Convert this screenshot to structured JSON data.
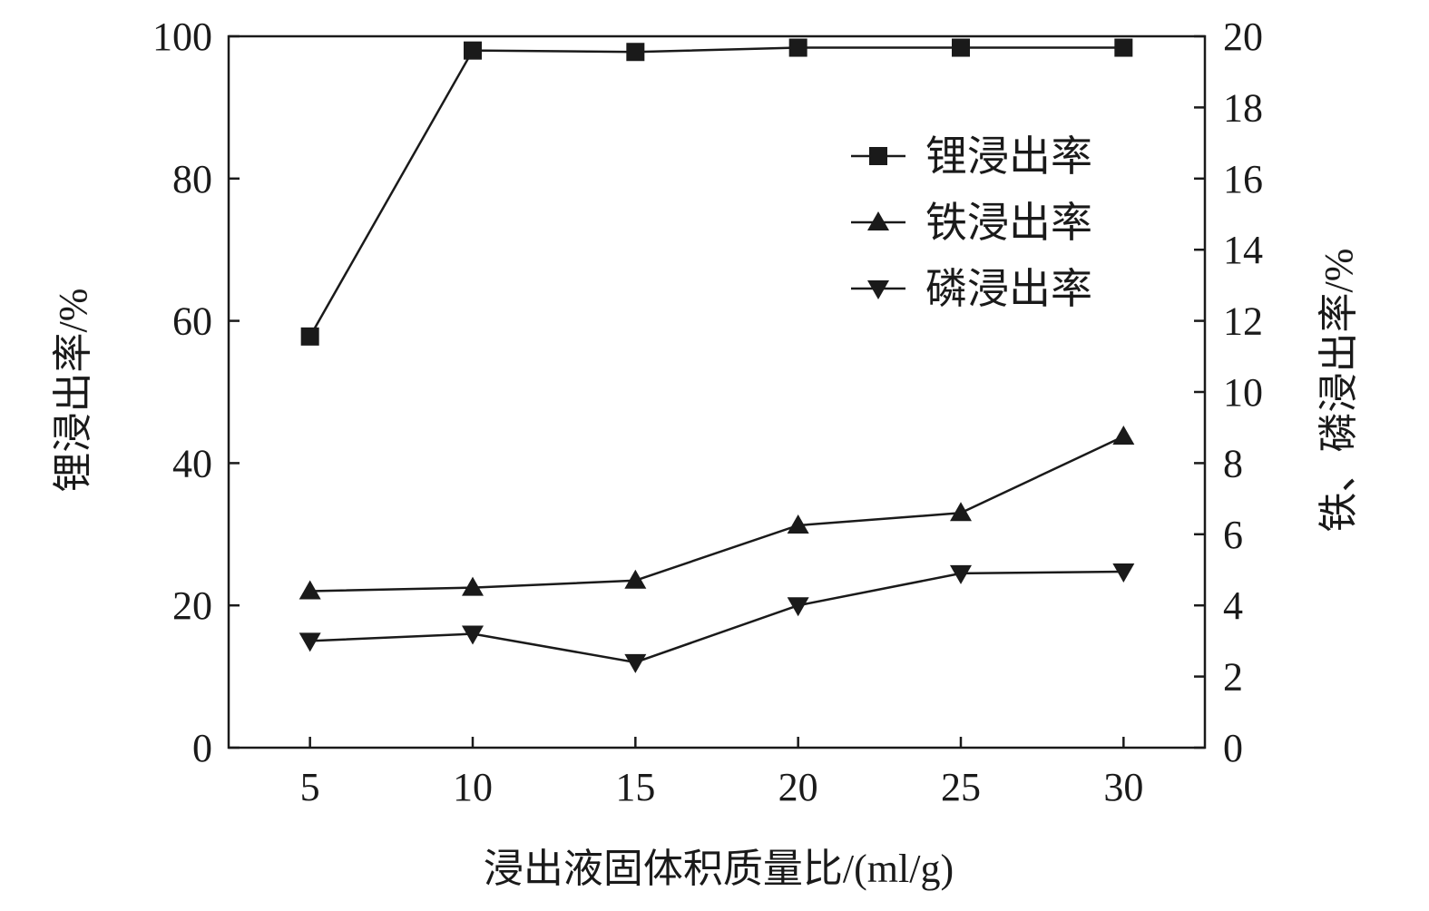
{
  "chart_data": {
    "type": "line",
    "xlabel": "浸出液固体积质量比/(ml/g)",
    "ylabel_left": "锂浸出率/%",
    "ylabel_right": "铁、磷浸出率/%",
    "x": [
      5,
      10,
      15,
      20,
      25,
      30
    ],
    "xlim": [
      2.5,
      32.5
    ],
    "ylim_left": [
      0,
      100
    ],
    "ylim_right": [
      0,
      20
    ],
    "xticks": [
      5,
      10,
      15,
      20,
      25,
      30
    ],
    "yticks_left": [
      0,
      20,
      40,
      60,
      80,
      100
    ],
    "yticks_right": [
      0,
      2,
      4,
      6,
      8,
      10,
      12,
      14,
      16,
      18,
      20
    ],
    "grid": false,
    "legend_position": "top-right",
    "series": [
      {
        "name": "锂浸出率",
        "axis": "left",
        "marker": "square",
        "values": [
          57.8,
          98.0,
          97.8,
          98.4,
          98.4,
          98.4
        ]
      },
      {
        "name": "铁浸出率",
        "axis": "right",
        "marker": "triangle-up",
        "values": [
          4.4,
          4.5,
          4.7,
          6.25,
          6.6,
          8.75
        ]
      },
      {
        "name": "磷浸出率",
        "axis": "right",
        "marker": "triangle-down",
        "values": [
          3.0,
          3.2,
          2.4,
          4.0,
          4.9,
          4.95
        ]
      }
    ]
  }
}
